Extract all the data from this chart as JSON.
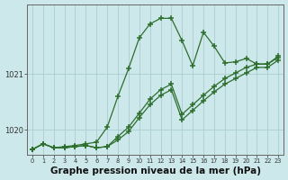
{
  "background_color": "#cce8ea",
  "grid_color": "#aaccd0",
  "line_color": "#2d6e2d",
  "marker_color": "#2d6e2d",
  "xlabel": "Graphe pression niveau de la mer (hPa)",
  "xlabel_fontsize": 7.5,
  "xlim": [
    -0.5,
    23.5
  ],
  "ylim": [
    1019.55,
    1022.25
  ],
  "yticks": [
    1020,
    1021
  ],
  "xticks": [
    0,
    1,
    2,
    3,
    4,
    5,
    6,
    7,
    8,
    9,
    10,
    11,
    12,
    13,
    14,
    15,
    16,
    17,
    18,
    19,
    20,
    21,
    22,
    23
  ],
  "series1_x": [
    0,
    1,
    2,
    3,
    4,
    5,
    6,
    7,
    8,
    9,
    10,
    11,
    12,
    13,
    14,
    15,
    16,
    17,
    18,
    19,
    20,
    21,
    22,
    23
  ],
  "series1_y": [
    1019.65,
    1019.75,
    1019.68,
    1019.7,
    1019.72,
    1019.75,
    1019.78,
    1020.05,
    1020.6,
    1021.1,
    1021.65,
    1021.9,
    1022.0,
    1022.0,
    1021.6,
    1021.15,
    1021.75,
    1021.5,
    1021.2,
    1021.22,
    1021.28,
    1021.18,
    1021.18,
    1021.32
  ],
  "series2_x": [
    0,
    1,
    2,
    3,
    4,
    5,
    6,
    7,
    8,
    9,
    10,
    11,
    12,
    13,
    14,
    15,
    16,
    17,
    18,
    19,
    20,
    21,
    22,
    23
  ],
  "series2_y": [
    1019.65,
    1019.75,
    1019.68,
    1019.68,
    1019.7,
    1019.72,
    1019.68,
    1019.7,
    1019.88,
    1020.05,
    1020.3,
    1020.55,
    1020.72,
    1020.82,
    1020.28,
    1020.45,
    1020.62,
    1020.78,
    1020.92,
    1021.02,
    1021.12,
    1021.18,
    1021.18,
    1021.3
  ],
  "series3_x": [
    0,
    1,
    2,
    3,
    4,
    5,
    6,
    7,
    8,
    9,
    10,
    11,
    12,
    13,
    14,
    15,
    16,
    17,
    18,
    19,
    20,
    21,
    22,
    23
  ],
  "series3_y": [
    1019.65,
    1019.75,
    1019.68,
    1019.68,
    1019.7,
    1019.72,
    1019.68,
    1019.7,
    1019.82,
    1019.97,
    1020.22,
    1020.45,
    1020.62,
    1020.72,
    1020.18,
    1020.35,
    1020.52,
    1020.68,
    1020.82,
    1020.92,
    1021.02,
    1021.12,
    1021.12,
    1021.25
  ]
}
